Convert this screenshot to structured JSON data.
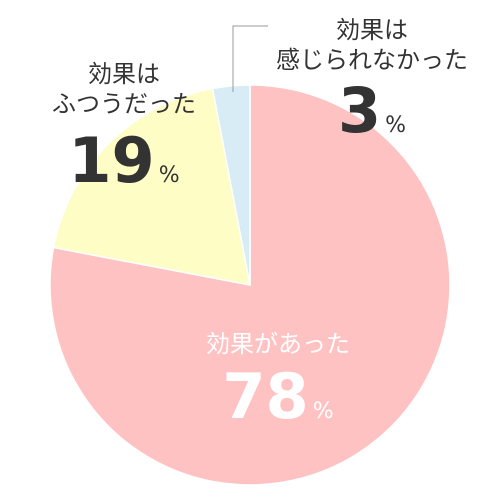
{
  "chart_data": {
    "type": "pie",
    "slices": [
      {
        "label_lines": [
          "効果があった"
        ],
        "value": 78,
        "unit": "%",
        "color": "#ffc2c2",
        "label_color": "#ffffff"
      },
      {
        "label_lines": [
          "効果は",
          "ふつうだった"
        ],
        "value": 19,
        "unit": "%",
        "color": "#fdfdc5",
        "label_color": "#333333"
      },
      {
        "label_lines": [
          "効果は",
          "感じられなかった"
        ],
        "value": 3,
        "unit": "%",
        "color": "#d8ecf6",
        "label_color": "#333333"
      }
    ],
    "start": "12 o'clock",
    "direction": "clockwise",
    "stroke_color": "#ffffff",
    "leader_line_color": "#999999"
  }
}
